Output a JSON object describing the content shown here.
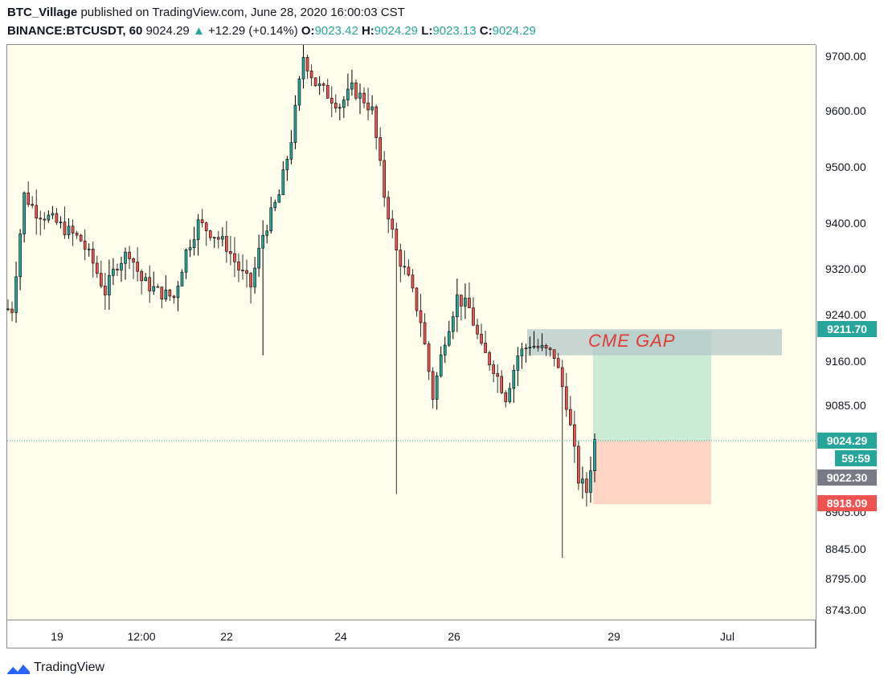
{
  "header": {
    "author": "BTC_Village",
    "published_text": "published on TradingView.com, June 28, 2020 16:00:03 CST",
    "symbol": "BINANCE:BTCUSDT, 60",
    "last": "9024.29",
    "change_arrow": "▲",
    "change": "+12.29 (+0.14%)",
    "o_label": "O:",
    "o": "9023.42",
    "h_label": "H:",
    "h": "9024.29",
    "l_label": "L:",
    "l": "9023.13",
    "c_label": "C:",
    "c": "9024.29"
  },
  "brand": {
    "name": "TradingView",
    "icon": "tradingview-logo-icon"
  },
  "colors": {
    "background": "#fffdeb",
    "up": "#26a69a",
    "down": "#ef5350",
    "gap_zone": "#b0c4c8",
    "target_zone": "#bfe6cf",
    "stop_zone": "#ffccbc",
    "label_gray": "#787b86"
  },
  "chart_data": {
    "type": "candlestick",
    "interval": "60",
    "x_ticks": [
      "19",
      "12:00",
      "22",
      "24",
      "26",
      "29",
      "Jul"
    ],
    "y_ticks": [
      "9700.00",
      "9600.00",
      "9500.00",
      "9400.00",
      "9320.00",
      "9240.00",
      "9160.00",
      "9085.00",
      "8905.00",
      "8845.00",
      "8795.00",
      "8743.00"
    ],
    "ylim": [
      8720,
      9720
    ],
    "price_path": [
      9250,
      9450,
      9420,
      9410,
      9390,
      9370,
      9330,
      9280,
      9330,
      9350,
      9300,
      9280,
      9270,
      9350,
      9400,
      9380,
      9360,
      9320,
      9290,
      9380,
      9450,
      9550,
      9700,
      9650,
      9630,
      9610,
      9640,
      9620,
      9600,
      9450,
      9350,
      9300,
      9230,
      9100,
      9200,
      9270,
      9250,
      9180,
      9150,
      9100,
      9170,
      9190,
      9180,
      9170,
      9090,
      8960,
      8940,
      9024
    ],
    "price_path_x": [
      1,
      4,
      7,
      10,
      14,
      18,
      21,
      24,
      27,
      30,
      33,
      37,
      41,
      44,
      47,
      51,
      54,
      57,
      60,
      63,
      67,
      70,
      73,
      76,
      79,
      82,
      85,
      88,
      90,
      93,
      96,
      99,
      102,
      105,
      108,
      111,
      114,
      117,
      120,
      123,
      126,
      129,
      132,
      135,
      138,
      141,
      143,
      145
    ],
    "candles": {
      "lows": [
        9170,
        8935,
        8830
      ],
      "highs": [
        9720
      ],
      "current_price": "9024.29",
      "countdown": "59:59"
    },
    "price_labels": [
      {
        "value": "9211.70",
        "color": "#26a69a"
      },
      {
        "value": "9024.29",
        "color": "#26a69a"
      },
      {
        "value": "59:59",
        "color": "#26a69a"
      },
      {
        "value": "9022.30",
        "color": "#787b86"
      },
      {
        "value": "8918.09",
        "color": "#ef5350"
      }
    ],
    "annotations": {
      "gap_label": "CME  GAP",
      "gap_zone": {
        "from": 9170,
        "to": 9215
      },
      "position": {
        "entry": 9024.29,
        "target": 9211.7,
        "stop": 8918.09
      }
    }
  }
}
